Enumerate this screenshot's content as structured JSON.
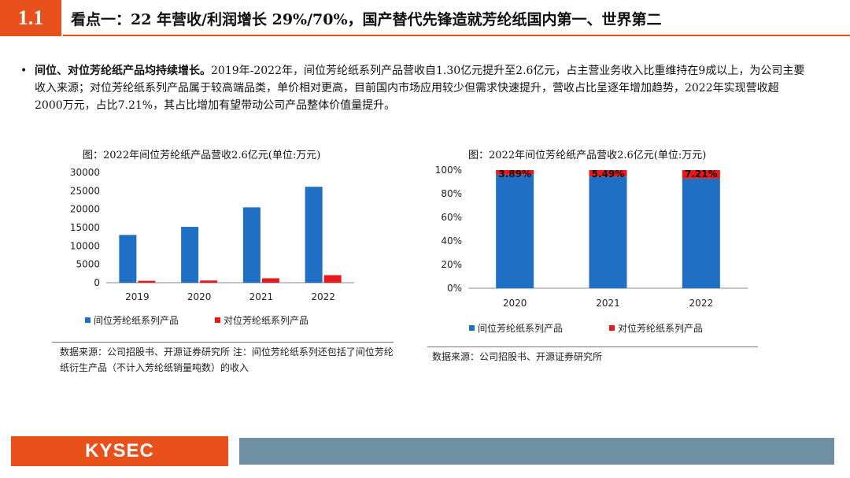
{
  "header": {
    "section_number": "1.1",
    "title": "看点一：22 年营收/利润增长 29%/70%，国产替代先锋造就芳纶纸国内第一、世界第二"
  },
  "bullet": {
    "marker": "•",
    "bold_text": "间位、对位芳纶纸产品均持续增长。",
    "body_text": "2019年-2022年，间位芳纶纸系列产品营收自1.30亿元提升至2.6亿元，占主营业务收入比重维持在9成以上，为公司主要收入来源；对位芳纶纸系列产品属于较高端品类，单价相对更高，目前国内市场应用较少但需求快速提升，营收占比呈逐年增加趋势，2022年实现营收超2000万元，占比7.21%，其占比增加有望带动公司产品整体价值量提升。"
  },
  "figures": {
    "left_title": "图：2022年间位芳纶纸产品营收2.6亿元(单位:万元)",
    "right_title": "图：2022年间位芳纶纸产品营收2.6亿元(单位:万元)",
    "left_source": "数据来源：公司招股书、开源证券研究所 注：间位芳纶纸系列还包括了间位芳纶纸衍生产品（不计入芳纶纸销量吨数）的收入",
    "right_source": "数据来源：公司招股书、开源证券研究所"
  },
  "colors": {
    "blue": "#1F6FC5",
    "red": "#E8181B",
    "accent": "#E8501C",
    "footer_bar": "#6F8FA3"
  },
  "chart_data": [
    {
      "type": "bar",
      "categories": [
        "2019",
        "2020",
        "2021",
        "2022"
      ],
      "series": [
        {
          "name": "间位芳纶纸系列产品",
          "values": [
            13000,
            15200,
            20500,
            26100
          ]
        },
        {
          "name": "对位芳纶纸系列产品",
          "values": [
            520,
            600,
            1200,
            2050
          ]
        }
      ],
      "ylim": [
        0,
        30000
      ],
      "yticks": [
        "0",
        "5000",
        "10000",
        "15000",
        "20000",
        "25000",
        "30000"
      ],
      "legend": "bottom",
      "grid": false
    },
    {
      "type": "bar",
      "stacked": true,
      "categories": [
        "2020",
        "2021",
        "2022"
      ],
      "series": [
        {
          "name": "间位芳纶纸系列产品",
          "values": [
            96.11,
            94.51,
            92.79
          ]
        },
        {
          "name": "对位芳纶纸系列产品",
          "values": [
            3.89,
            5.49,
            7.21
          ]
        }
      ],
      "data_labels": [
        "3.89%",
        "5.49%",
        "7.21%"
      ],
      "ylim": [
        0,
        100
      ],
      "yticks": [
        "0%",
        "20%",
        "40%",
        "60%",
        "80%",
        "100%"
      ],
      "legend": "bottom",
      "grid": false
    }
  ],
  "footer": {
    "logo_text": "KYSEC"
  }
}
